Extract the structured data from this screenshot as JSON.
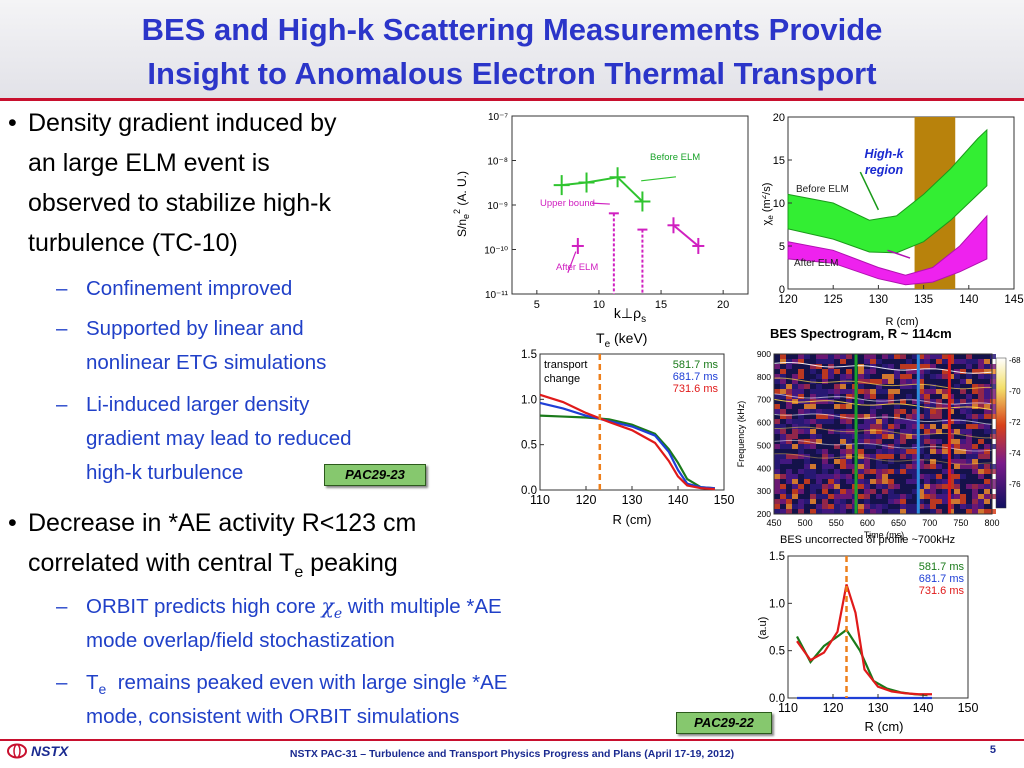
{
  "title": {
    "line1": "BES and High-k Scattering Measurements Provide",
    "line2": "Insight to Anomalous Electron Thermal Transport"
  },
  "bullets": [
    {
      "lines": [
        "Density gradient induced by",
        "an large ELM event is",
        "observed to stabilize high-k",
        "turbulence (TC-10)"
      ],
      "subs": [
        [
          "Confinement improved"
        ],
        [
          "Supported by linear and",
          "nonlinear ETG simulations"
        ],
        [
          "Li-induced larger density",
          "gradient may lead to reduced",
          "high-k turbulence"
        ]
      ],
      "badge": "PAC29-23"
    },
    {
      "line1": "Decrease in *AE activity R<123 cm",
      "line2_pre": "correlated with central T",
      "line2_sub": "e",
      "line2_post": " peaking",
      "sub1_pre": "ORBIT predicts high core ",
      "sub1_symbol": "χ",
      "sub1_symbol_sub": "e",
      "sub1_post": " with multiple *AE",
      "sub1_line2": "mode overlap/field stochastization",
      "sub2_pre": "T",
      "sub2_sub": "e",
      "sub2_post": "  remains peaked even with large single *AE",
      "sub2_line2": "mode, consistent with ORBIT simulations",
      "badge": "PAC29-22"
    }
  ],
  "footer": {
    "logo": "NSTX",
    "text": "NSTX PAC-31 – Turbulence and Transport Physics Progress and Plans (April 17-19, 2012)",
    "page": "5"
  },
  "colors": {
    "title": "#2b35c9",
    "rule": "#c8102e",
    "sub": "#2040c8",
    "badge": "#86c86e",
    "series_green": "#1a7a1a",
    "series_blue": "#1f3fd6",
    "series_red": "#e01a1a",
    "marker": "#ee7f1a"
  },
  "chart_data": [
    {
      "type": "scatter",
      "y_scale": "log",
      "y_ticks": [
        "10⁻⁷",
        "10⁻⁸",
        "10⁻⁹",
        "10⁻¹⁰",
        "10⁻¹¹"
      ],
      "x_ticks": [
        "5",
        "10",
        "15",
        "20"
      ],
      "xlim": [
        3,
        22
      ],
      "ylim_exp": [
        -11,
        -7
      ],
      "xlabel_k": "k",
      "xlabel_sym": "⊥ρ",
      "xlabel_sub": "s",
      "ylabel": "S/n_e^2 (A. U.)",
      "series": [
        {
          "name": "Before ELM",
          "points": [
            [
              7,
              2.8e-09
            ],
            [
              9,
              3.2e-09
            ],
            [
              11.5,
              4.2e-09
            ],
            [
              13.5,
              1.2e-09
            ]
          ]
        },
        {
          "name": "After ELM",
          "points": [
            [
              8.3,
              1.2e-10
            ],
            [
              16,
              3.5e-10
            ],
            [
              18,
              1.2e-10
            ]
          ]
        }
      ],
      "upper_bound_label": "Upper bound",
      "upper_bounds": [
        [
          11.2,
          6.5e-10
        ],
        [
          13.5,
          2.8e-10
        ]
      ]
    },
    {
      "type": "area",
      "x_ticks": [
        "120",
        "125",
        "130",
        "135",
        "140",
        "145"
      ],
      "y_ticks": [
        "20",
        "15",
        "10",
        "5",
        "0"
      ],
      "xlim": [
        120,
        145
      ],
      "ylim": [
        0,
        20
      ],
      "xlabel": "R (cm)",
      "ylabel": "χ_e (m²/s)",
      "annotation": [
        "High-k",
        "region"
      ],
      "region": [
        134,
        138.5
      ],
      "series": [
        {
          "name": "Before ELM",
          "upper": [
            [
              120,
              11
            ],
            [
              125,
              10
            ],
            [
              129,
              8
            ],
            [
              132,
              8.5
            ],
            [
              135,
              11
            ],
            [
              138,
              14
            ],
            [
              141,
              17.5
            ],
            [
              142,
              18.5
            ]
          ],
          "lower": [
            [
              120,
              7
            ],
            [
              125,
              5.8
            ],
            [
              129,
              4.3
            ],
            [
              132,
              4.2
            ],
            [
              135,
              5.5
            ],
            [
              138,
              8
            ],
            [
              141,
              11
            ],
            [
              142,
              12
            ]
          ]
        },
        {
          "name": "After ELM",
          "upper": [
            [
              120,
              5.5
            ],
            [
              125,
              4.5
            ],
            [
              130,
              2.5
            ],
            [
              133,
              1.6
            ],
            [
              136,
              2.5
            ],
            [
              139,
              5
            ],
            [
              142,
              8.5
            ]
          ],
          "lower": [
            [
              120,
              3.5
            ],
            [
              125,
              3
            ],
            [
              130,
              1.2
            ],
            [
              133,
              0.5
            ],
            [
              136,
              0.8
            ],
            [
              139,
              2
            ],
            [
              142,
              3.5
            ]
          ]
        }
      ]
    },
    {
      "type": "line",
      "title": "T_e (keV)",
      "x_ticks": [
        "110",
        "120",
        "130",
        "140",
        "150"
      ],
      "y_ticks": [
        "1.5",
        "1.0",
        "0.5",
        "0.0"
      ],
      "xlim": [
        110,
        150
      ],
      "ylim": [
        0,
        1.5
      ],
      "xlabel": "R (cm)",
      "annotation": [
        "transport",
        "change"
      ],
      "marker_x": 123,
      "series": [
        {
          "name": "581.7 ms",
          "color": "#1a7a1a",
          "points": [
            [
              110,
              0.82
            ],
            [
              115,
              0.81
            ],
            [
              120,
              0.8
            ],
            [
              125,
              0.78
            ],
            [
              130,
              0.72
            ],
            [
              135,
              0.62
            ],
            [
              138,
              0.45
            ],
            [
              140,
              0.3
            ],
            [
              142,
              0.12
            ],
            [
              145,
              0.03
            ],
            [
              148,
              0.02
            ]
          ]
        },
        {
          "name": "681.7 ms",
          "color": "#1f3fd6",
          "points": [
            [
              110,
              0.96
            ],
            [
              115,
              0.9
            ],
            [
              120,
              0.82
            ],
            [
              125,
              0.76
            ],
            [
              130,
              0.7
            ],
            [
              135,
              0.6
            ],
            [
              138,
              0.42
            ],
            [
              140,
              0.22
            ],
            [
              142,
              0.07
            ],
            [
              145,
              0.03
            ],
            [
              148,
              0.02
            ]
          ]
        },
        {
          "name": "731.6 ms",
          "color": "#e01a1a",
          "points": [
            [
              110,
              1.05
            ],
            [
              115,
              0.97
            ],
            [
              120,
              0.85
            ],
            [
              125,
              0.75
            ],
            [
              130,
              0.66
            ],
            [
              135,
              0.52
            ],
            [
              138,
              0.32
            ],
            [
              140,
              0.15
            ],
            [
              142,
              0.05
            ],
            [
              145,
              0.02
            ],
            [
              148,
              0.01
            ]
          ]
        }
      ]
    },
    {
      "type": "heatmap",
      "title": "BES Spectrogram, R ~ 114cm",
      "x_ticks": [
        "450",
        "500",
        "550",
        "600",
        "650",
        "700",
        "750",
        "800"
      ],
      "y_ticks": [
        "900",
        "800",
        "700",
        "600",
        "500",
        "400",
        "300",
        "200"
      ],
      "xlim": [
        450,
        800
      ],
      "ylim": [
        200,
        900
      ],
      "xlabel": "Time (ms)",
      "ylabel": "Frequency (kHz)",
      "colorbar_ticks": [
        "-68",
        "-70",
        "-72",
        "-74",
        "-76"
      ],
      "markers": [
        {
          "x": 581.7,
          "color": "#1aa32a"
        },
        {
          "x": 681.7,
          "color": "#2b8de0"
        },
        {
          "x": 731.6,
          "color": "#e01a1a"
        }
      ]
    },
    {
      "type": "line",
      "title": "BES uncorrected δI profile ~700kHz",
      "x_ticks": [
        "110",
        "120",
        "130",
        "140",
        "150"
      ],
      "y_ticks": [
        "1.5",
        "1.0",
        "0.5",
        "0.0"
      ],
      "xlim": [
        110,
        150
      ],
      "ylim": [
        0,
        1.5
      ],
      "xlabel": "R (cm)",
      "ylabel": "(a.u)",
      "marker_x": 123,
      "series": [
        {
          "name": "581.7 ms",
          "color": "#1a7a1a",
          "points": [
            [
              112,
              0.65
            ],
            [
              115,
              0.38
            ],
            [
              118,
              0.55
            ],
            [
              121,
              0.65
            ],
            [
              123,
              0.72
            ],
            [
              126,
              0.5
            ],
            [
              129,
              0.18
            ],
            [
              132,
              0.1
            ],
            [
              135,
              0.06
            ],
            [
              138,
              0.04
            ],
            [
              141,
              0.03
            ]
          ]
        },
        {
          "name": "681.7 ms",
          "color": "#1f3fd6",
          "points": [
            [
              112,
              0.0
            ],
            [
              120,
              0.0
            ],
            [
              130,
              0.0
            ],
            [
              142,
              0.0
            ]
          ]
        },
        {
          "name": "731.6 ms",
          "color": "#e01a1a",
          "points": [
            [
              112,
              0.6
            ],
            [
              115,
              0.4
            ],
            [
              118,
              0.48
            ],
            [
              121,
              0.7
            ],
            [
              123,
              1.2
            ],
            [
              125,
              0.9
            ],
            [
              127,
              0.3
            ],
            [
              130,
              0.12
            ],
            [
              133,
              0.07
            ],
            [
              136,
              0.05
            ],
            [
              139,
              0.04
            ],
            [
              142,
              0.04
            ]
          ]
        }
      ]
    }
  ]
}
